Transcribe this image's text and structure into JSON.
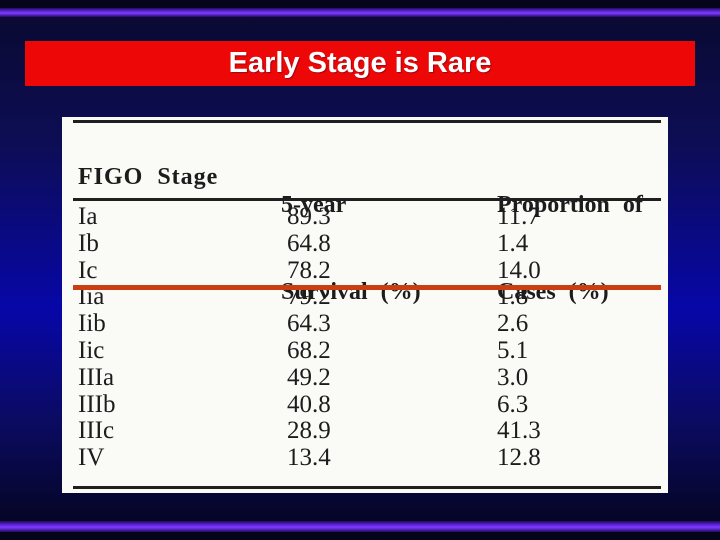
{
  "slide": {
    "title": "Early Stage is Rare",
    "colors": {
      "banner_red": "#ee0707",
      "highlight_line_red": "#cb3e11",
      "purple_bar": "#6e2cf4",
      "background_blue": "#0707a8",
      "table_background": "#fafaf7"
    }
  },
  "table": {
    "header": {
      "col1": "FIGO Stage",
      "col2_line1": "5-year",
      "col2_line2": "Survival (%)",
      "col3_line1": "Proportion of",
      "col3_line2": "Cases (%)"
    },
    "rows": [
      {
        "stage": "Ia",
        "survival": "89.3",
        "proportion": "11.7"
      },
      {
        "stage": "Ib",
        "survival": "64.8",
        "proportion": "1.4"
      },
      {
        "stage": "Ic",
        "survival": "78.2",
        "proportion": "14.0"
      },
      {
        "stage": "Iia",
        "survival": "79.2",
        "proportion": "1.8"
      },
      {
        "stage": "Iib",
        "survival": "64.3",
        "proportion": "2.6"
      },
      {
        "stage": "Iic",
        "survival": "68.2",
        "proportion": "5.1"
      },
      {
        "stage": "IIIa",
        "survival": "49.2",
        "proportion": "3.0"
      },
      {
        "stage": "IIIb",
        "survival": "40.8",
        "proportion": "6.3"
      },
      {
        "stage": "IIIc",
        "survival": "28.9",
        "proportion": "41.3"
      },
      {
        "stage": "IV",
        "survival": "13.4",
        "proportion": "12.8"
      }
    ]
  },
  "chart_data": {
    "type": "table",
    "title": "Early Stage is Rare",
    "columns": [
      "FIGO Stage",
      "5-year Survival (%)",
      "Proportion of Cases (%)"
    ],
    "rows": [
      [
        "Ia",
        89.3,
        11.7
      ],
      [
        "Ib",
        64.8,
        1.4
      ],
      [
        "Ic",
        78.2,
        14.0
      ],
      [
        "Iia",
        79.2,
        1.8
      ],
      [
        "Iib",
        64.3,
        2.6
      ],
      [
        "Iic",
        68.2,
        5.1
      ],
      [
        "IIIa",
        49.2,
        3.0
      ],
      [
        "IIIb",
        40.8,
        6.3
      ],
      [
        "IIIc",
        28.9,
        41.3
      ],
      [
        "IV",
        13.4,
        12.8
      ]
    ],
    "annotations": [
      "red-orange horizontal rule drawn across full table width beneath row Ic, separating stages Ia-Ic from Iia-IV"
    ]
  }
}
